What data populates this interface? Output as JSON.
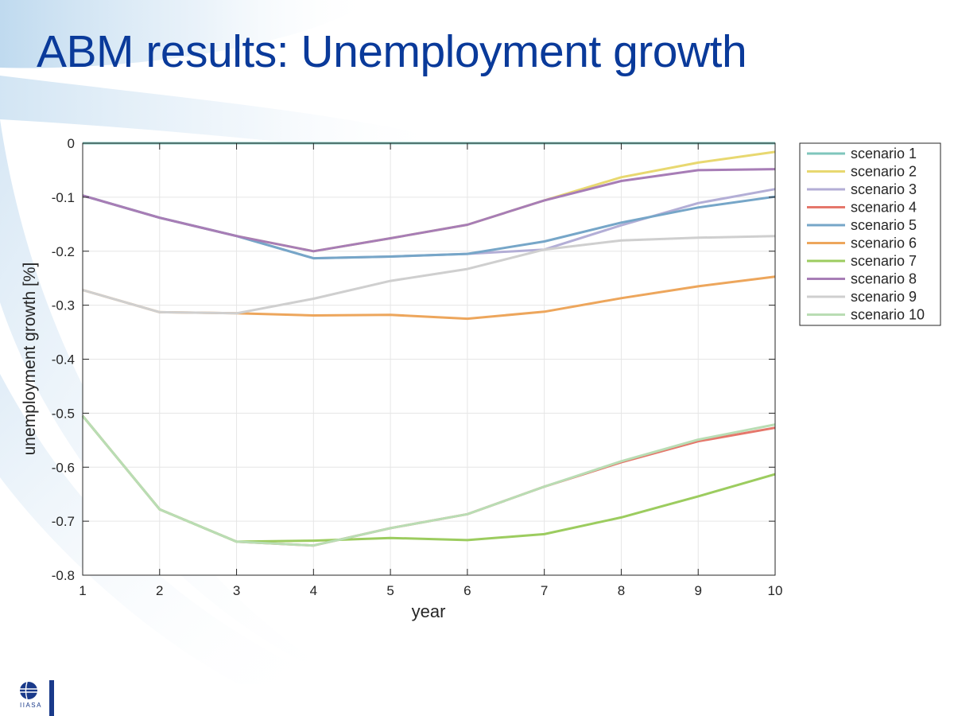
{
  "slide": {
    "title": "ABM results: Unemployment growth",
    "logo_text": "IIASA"
  },
  "colors": {
    "title": "#0a3a9a",
    "logo": "#1a3a8a",
    "background_swoosh": "#cfe3f2"
  },
  "chart_data": {
    "type": "line",
    "xlabel": "year",
    "ylabel": "unemployment growth [%]",
    "xlim": [
      1,
      10
    ],
    "ylim": [
      -0.8,
      0
    ],
    "x": [
      1,
      2,
      3,
      4,
      5,
      6,
      7,
      8,
      9,
      10
    ],
    "xticks": [
      "1",
      "2",
      "3",
      "4",
      "5",
      "6",
      "7",
      "8",
      "9",
      "10"
    ],
    "yticks": [
      0,
      -0.1,
      -0.2,
      -0.3,
      -0.4,
      -0.5,
      -0.6,
      -0.7,
      -0.8
    ],
    "ytick_labels": [
      "0",
      "-0.1",
      "-0.2",
      "-0.3",
      "-0.4",
      "-0.5",
      "-0.6",
      "-0.7",
      "-0.8"
    ],
    "grid": true,
    "legend_position": "outside-right-top",
    "series": [
      {
        "name": "scenario 1",
        "color": "#7fc6bc",
        "values": [
          0,
          0,
          0,
          0,
          0,
          0,
          0,
          0,
          0,
          0
        ]
      },
      {
        "name": "scenario 2",
        "color": "#e8d870",
        "values": [
          -0.097,
          -0.138,
          -0.172,
          -0.2,
          -0.176,
          -0.151,
          -0.106,
          -0.063,
          -0.036,
          -0.016
        ]
      },
      {
        "name": "scenario 3",
        "color": "#b3aed6",
        "values": [
          -0.097,
          -0.138,
          -0.172,
          -0.213,
          -0.21,
          -0.205,
          -0.197,
          -0.152,
          -0.111,
          -0.085
        ]
      },
      {
        "name": "scenario 4",
        "color": "#e5776b",
        "values": [
          -0.505,
          -0.678,
          -0.738,
          -0.745,
          -0.713,
          -0.687,
          -0.636,
          -0.591,
          -0.552,
          -0.527
        ]
      },
      {
        "name": "scenario 5",
        "color": "#76a6c8",
        "values": [
          -0.097,
          -0.138,
          -0.172,
          -0.213,
          -0.21,
          -0.205,
          -0.182,
          -0.147,
          -0.119,
          -0.099
        ]
      },
      {
        "name": "scenario 6",
        "color": "#eda65c",
        "values": [
          -0.272,
          -0.313,
          -0.315,
          -0.319,
          -0.318,
          -0.325,
          -0.312,
          -0.287,
          -0.265,
          -0.247
        ]
      },
      {
        "name": "scenario 7",
        "color": "#9ccc5f",
        "values": [
          -0.505,
          -0.678,
          -0.738,
          -0.736,
          -0.731,
          -0.735,
          -0.724,
          -0.693,
          -0.654,
          -0.613
        ]
      },
      {
        "name": "scenario 8",
        "color": "#a77db6",
        "values": [
          -0.097,
          -0.138,
          -0.172,
          -0.2,
          -0.176,
          -0.151,
          -0.106,
          -0.07,
          -0.05,
          -0.048
        ]
      },
      {
        "name": "scenario 9",
        "color": "#cfcfcf",
        "values": [
          -0.272,
          -0.313,
          -0.315,
          -0.288,
          -0.255,
          -0.233,
          -0.197,
          -0.18,
          -0.175,
          -0.172
        ]
      },
      {
        "name": "scenario 10",
        "color": "#b9ddb4",
        "values": [
          -0.505,
          -0.678,
          -0.738,
          -0.745,
          -0.713,
          -0.687,
          -0.636,
          -0.589,
          -0.549,
          -0.521
        ]
      }
    ]
  }
}
